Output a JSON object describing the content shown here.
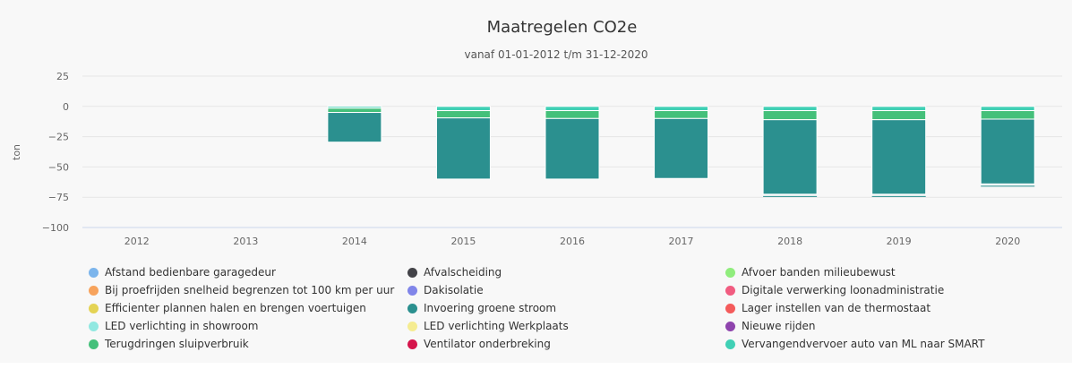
{
  "chart_data": {
    "type": "bar",
    "stacked": true,
    "title": "Maatregelen CO2e",
    "subtitle": "vanaf 01-01-2012 t/m 31-12-2020",
    "ylabel": "ton",
    "xlabel": "",
    "ylim": [
      -100,
      25
    ],
    "yticks": [
      25,
      0,
      -25,
      -50,
      -75,
      -100
    ],
    "grid": true,
    "legend_position": "bottom",
    "categories": [
      "2012",
      "2013",
      "2014",
      "2015",
      "2016",
      "2017",
      "2018",
      "2019",
      "2020"
    ],
    "series": [
      {
        "name": "Afstand bedienbare garagedeur",
        "color": "#7cb5ec",
        "values": [
          0,
          0,
          0,
          0,
          0,
          0,
          0,
          0,
          0
        ]
      },
      {
        "name": "Afvalscheiding",
        "color": "#434348",
        "values": [
          0,
          0,
          0,
          0,
          0,
          0,
          0,
          0,
          0
        ]
      },
      {
        "name": "Afvoer banden milieubewust",
        "color": "#90ed7d",
        "values": [
          0,
          0,
          0,
          0,
          0,
          0,
          0,
          0,
          0
        ]
      },
      {
        "name": "Bij proefrijden snelheid begrenzen tot 100 km per uur",
        "color": "#f7a35c",
        "values": [
          0,
          0,
          0,
          0,
          0,
          0,
          0,
          0,
          0
        ]
      },
      {
        "name": "Dakisolatie",
        "color": "#8085e9",
        "values": [
          0,
          0,
          0,
          0,
          0,
          0,
          0,
          0,
          0
        ]
      },
      {
        "name": "Digitale verwerking loonadministratie",
        "color": "#f15c80",
        "values": [
          0,
          0,
          0,
          0,
          0,
          0,
          0,
          0,
          0
        ]
      },
      {
        "name": "Efficienter plannen halen en brengen voertuigen",
        "color": "#e4d354",
        "values": [
          0,
          0,
          0,
          0,
          0,
          0,
          0,
          0,
          0
        ]
      },
      {
        "name": "Invoering groene stroom",
        "color": "#2b908f",
        "values": [
          0,
          0,
          -24.5,
          -50.5,
          -50,
          -49.5,
          -61.5,
          -61.5,
          -53.5
        ]
      },
      {
        "name": "Lager instellen van de thermostaat",
        "color": "#f45b5b",
        "values": [
          0,
          0,
          0,
          0,
          0,
          0,
          0,
          0,
          0
        ]
      },
      {
        "name": "LED verlichting in showroom",
        "color": "#91e8e1",
        "values": [
          0,
          0,
          0,
          0,
          0,
          0,
          0,
          0,
          0
        ]
      },
      {
        "name": "LED verlichting Werkplaats",
        "color": "#f5ec91",
        "values": [
          0,
          0,
          0,
          0,
          0,
          0,
          0,
          0,
          0
        ]
      },
      {
        "name": "Nieuwe rijden",
        "color": "#8e44ad",
        "values": [
          0,
          0,
          0,
          0,
          0,
          0,
          0,
          0,
          0
        ]
      },
      {
        "name": "Terugdringen sluipverbruik",
        "color": "#44c07a",
        "values": [
          0,
          0,
          -3.5,
          -6,
          -6.5,
          -6.5,
          -7.5,
          -7.5,
          -7
        ]
      },
      {
        "name": "Ventilator onderbreking",
        "color": "#d5154b",
        "values": [
          0,
          0,
          0,
          0,
          0,
          0,
          0,
          0,
          0
        ]
      },
      {
        "name": "Vervangendvervoer auto van ML naar SMART",
        "color": "#40d0b5",
        "values": [
          0,
          0,
          -1.5,
          -3.5,
          -3.5,
          -3.5,
          -3.5,
          -3.5,
          -3.5
        ]
      }
    ]
  }
}
